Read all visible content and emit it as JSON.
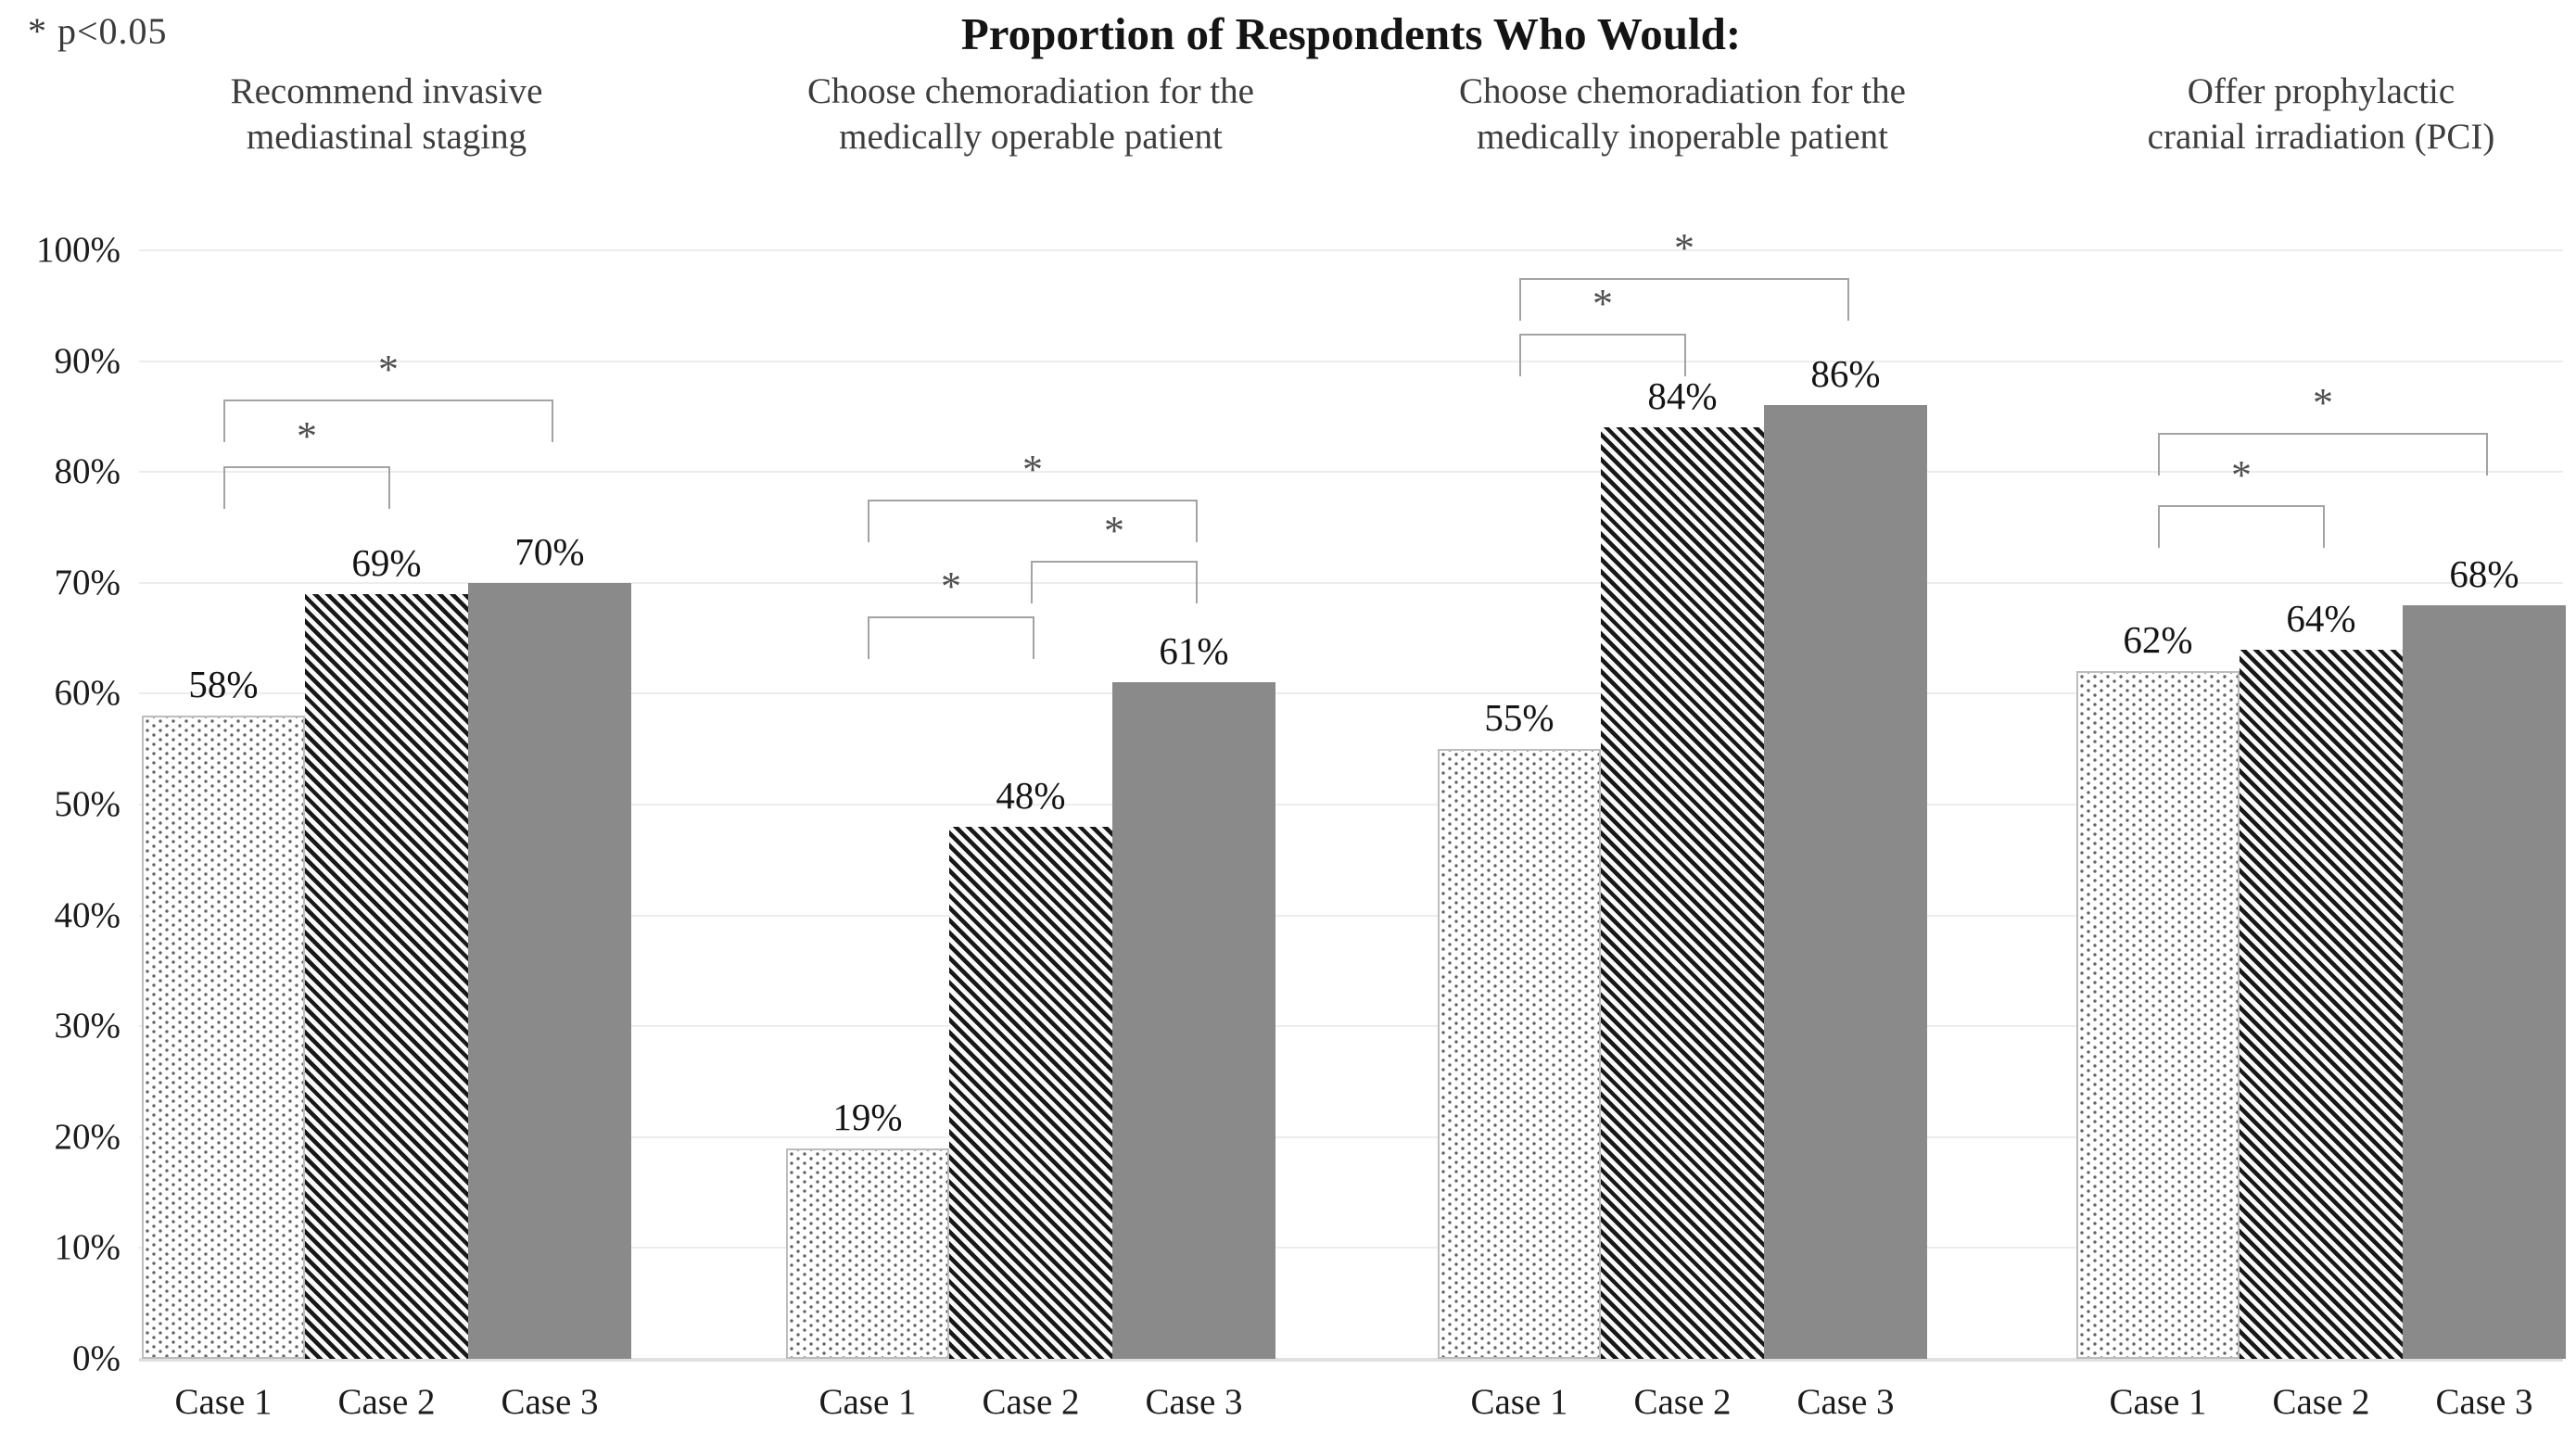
{
  "chart_data": {
    "type": "bar",
    "title": "Proportion of Respondents Who Would:",
    "note": "* p<0.05",
    "significance_marker": "*",
    "y_axis": {
      "min": 0,
      "max": 100,
      "tick_step": 10,
      "tick_labels": [
        "100%",
        "90%",
        "80%",
        "70%",
        "60%",
        "50%",
        "40%",
        "30%",
        "20%",
        "10%",
        "0%"
      ],
      "grid": true
    },
    "categories": [
      "Case 1",
      "Case 2",
      "Case 3"
    ],
    "series_styles": [
      {
        "name": "Case 1",
        "pattern": "dots",
        "fill": "#ffffff",
        "dot_color": "#646464",
        "border_color": "#bdbdbd"
      },
      {
        "name": "Case 2",
        "pattern": "diagonal-stripes",
        "stripe_color": "#181818",
        "background": "#f9f9f9"
      },
      {
        "name": "Case 3",
        "pattern": "solid",
        "fill": "#8a8a8a"
      }
    ],
    "groups": [
      {
        "label_lines": [
          "Recommend invasive",
          "mediastinal staging"
        ],
        "values": [
          58,
          69,
          70
        ],
        "value_labels": [
          "58%",
          "69%",
          "70%"
        ],
        "brackets": [
          {
            "from": 0,
            "to": 1,
            "y_pct": 80.5,
            "marker": "*"
          },
          {
            "from": 0,
            "to": 2,
            "y_pct": 86.5,
            "marker": "*"
          }
        ]
      },
      {
        "label_lines": [
          "Choose chemoradiation for the",
          "medically operable patient"
        ],
        "values": [
          19,
          48,
          61
        ],
        "value_labels": [
          "19%",
          "48%",
          "61%"
        ],
        "brackets": [
          {
            "from": 0,
            "to": 1,
            "y_pct": 67,
            "marker": "*"
          },
          {
            "from": 1,
            "to": 2,
            "y_pct": 72,
            "marker": "*"
          },
          {
            "from": 0,
            "to": 2,
            "y_pct": 77.5,
            "marker": "*"
          }
        ]
      },
      {
        "label_lines": [
          "Choose chemoradiation for the",
          "medically inoperable patient"
        ],
        "values": [
          55,
          84,
          86
        ],
        "value_labels": [
          "55%",
          "84%",
          "86%"
        ],
        "brackets": [
          {
            "from": 0,
            "to": 1,
            "y_pct": 92.5,
            "marker": "*"
          },
          {
            "from": 0,
            "to": 2,
            "y_pct": 97.5,
            "marker": "*"
          }
        ]
      },
      {
        "label_lines": [
          "Offer prophylactic",
          "cranial irradiation (PCI)"
        ],
        "values": [
          62,
          64,
          68
        ],
        "value_labels": [
          "62%",
          "64%",
          "68%"
        ],
        "brackets": [
          {
            "from": 0,
            "to": 1,
            "y_pct": 77,
            "marker": "*"
          },
          {
            "from": 0,
            "to": 2,
            "y_pct": 83.5,
            "marker": "*"
          }
        ]
      }
    ],
    "colors": {
      "solid_bar": "#8a8a8a",
      "stripe_dark": "#181818",
      "dot": "#646464",
      "gridline": "#ededed",
      "bracket_line": "#a3a3a3",
      "asterisk": "#4f4f4f",
      "header_text": "#3d3d3d",
      "title_text": "#141414"
    }
  }
}
